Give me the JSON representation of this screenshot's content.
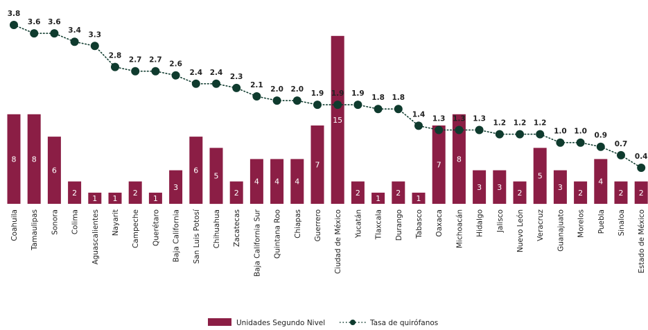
{
  "chart_data": {
    "type": "bar",
    "categories": [
      "Coahuila",
      "Tamaulipas",
      "Sonora",
      "Colima",
      "Aguascalientes",
      "Nayarit",
      "Campeche",
      "Querétaro",
      "Baja California",
      "San Luis Potosí",
      "Chihuahua",
      "Zacatecas",
      "Baja California Sur",
      "Quintana Roo",
      "Chiapas",
      "Guerrero",
      "Ciudad de México",
      "Yucatán",
      "Tlaxcala",
      "Durango",
      "Tabasco",
      "Oaxaca",
      "Michoacán",
      "Hidalgo",
      "Jalisco",
      "Nuevo León",
      "Veracruz",
      "Guanajuato",
      "Morelos",
      "Puebla",
      "Sinaloa",
      "Estado de México"
    ],
    "series": [
      {
        "name": "Unidades Segundo Nivel",
        "type": "bar",
        "color": "#8B1E45",
        "values": [
          8,
          8,
          6,
          2,
          1,
          1,
          2,
          1,
          3,
          6,
          5,
          2,
          4,
          4,
          4,
          7,
          15,
          2,
          1,
          2,
          1,
          7,
          8,
          3,
          3,
          2,
          5,
          3,
          2,
          4,
          2,
          2
        ],
        "labels": [
          "8",
          "8",
          "6",
          "2",
          "1",
          "1",
          "2",
          "1",
          "3",
          "6",
          "5",
          "2",
          "4",
          "4",
          "4",
          "7",
          "15",
          "2",
          "1",
          "2",
          "1",
          "7",
          "8",
          "3",
          "3",
          "2",
          "5",
          "3",
          "2",
          "4",
          "2",
          "2"
        ]
      },
      {
        "name": "Tasa de quirófanos",
        "type": "line",
        "color": "#0F3B2E",
        "values": [
          3.8,
          3.6,
          3.6,
          3.4,
          3.3,
          2.8,
          2.7,
          2.7,
          2.6,
          2.4,
          2.4,
          2.3,
          2.1,
          2.0,
          2.0,
          1.9,
          1.9,
          1.9,
          1.8,
          1.8,
          1.4,
          1.3,
          1.3,
          1.3,
          1.2,
          1.2,
          1.2,
          1.0,
          1.0,
          0.9,
          0.7,
          0.4
        ],
        "labels": [
          "3.8",
          "3.6",
          "3.6",
          "3.4",
          "3.3",
          "2.8",
          "2.7",
          "2.7",
          "2.6",
          "2.4",
          "2.4",
          "2.3",
          "2.1",
          "2.0",
          "2.0",
          "1.9",
          "1.9",
          "1.9",
          "1.8",
          "1.8",
          "1.4",
          "1.3",
          "1.3",
          "1.3",
          "1.2",
          "1.2",
          "1.2",
          "1.0",
          "1.0",
          "0.9",
          "0.7",
          "0.4"
        ]
      }
    ],
    "legend_position": "bottom-center",
    "grid": false
  }
}
